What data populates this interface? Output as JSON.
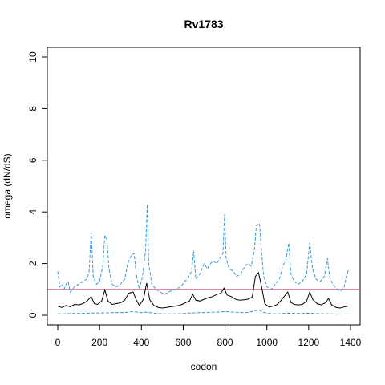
{
  "chart_data": {
    "type": "line",
    "title": "Rv1783",
    "xlabel": "codon",
    "ylabel": "omega (dN/dS)",
    "xlim": [
      0,
      1400
    ],
    "ylim": [
      0,
      10
    ],
    "x_ticks": [
      "0",
      "200",
      "400",
      "600",
      "800",
      "1000",
      "1200",
      "1400"
    ],
    "y_ticks": [
      "0",
      "2",
      "4",
      "6",
      "8",
      "10"
    ],
    "reference_line": {
      "y": 1,
      "color": "#e05a8a"
    },
    "grid": false,
    "series": [
      {
        "role": "omega",
        "style": "solid",
        "color": "#000000",
        "points": [
          [
            0,
            0.35
          ],
          [
            20,
            0.3
          ],
          [
            40,
            0.38
          ],
          [
            60,
            0.33
          ],
          [
            80,
            0.42
          ],
          [
            100,
            0.4
          ],
          [
            120,
            0.45
          ],
          [
            140,
            0.55
          ],
          [
            160,
            0.72
          ],
          [
            175,
            0.45
          ],
          [
            190,
            0.42
          ],
          [
            210,
            0.55
          ],
          [
            225,
            0.98
          ],
          [
            240,
            0.55
          ],
          [
            260,
            0.42
          ],
          [
            280,
            0.45
          ],
          [
            300,
            0.48
          ],
          [
            320,
            0.58
          ],
          [
            340,
            0.85
          ],
          [
            360,
            0.9
          ],
          [
            375,
            0.6
          ],
          [
            390,
            0.38
          ],
          [
            410,
            0.62
          ],
          [
            425,
            1.25
          ],
          [
            440,
            0.6
          ],
          [
            460,
            0.38
          ],
          [
            480,
            0.3
          ],
          [
            500,
            0.28
          ],
          [
            520,
            0.3
          ],
          [
            540,
            0.33
          ],
          [
            560,
            0.35
          ],
          [
            580,
            0.38
          ],
          [
            595,
            0.42
          ],
          [
            610,
            0.48
          ],
          [
            630,
            0.55
          ],
          [
            645,
            0.82
          ],
          [
            660,
            0.58
          ],
          [
            680,
            0.55
          ],
          [
            700,
            0.62
          ],
          [
            720,
            0.68
          ],
          [
            740,
            0.72
          ],
          [
            760,
            0.8
          ],
          [
            780,
            0.85
          ],
          [
            795,
            1.05
          ],
          [
            810,
            0.78
          ],
          [
            830,
            0.72
          ],
          [
            850,
            0.62
          ],
          [
            870,
            0.58
          ],
          [
            890,
            0.6
          ],
          [
            910,
            0.62
          ],
          [
            930,
            0.7
          ],
          [
            945,
            1.5
          ],
          [
            960,
            1.65
          ],
          [
            975,
            1.1
          ],
          [
            990,
            0.45
          ],
          [
            1010,
            0.32
          ],
          [
            1030,
            0.35
          ],
          [
            1050,
            0.42
          ],
          [
            1065,
            0.55
          ],
          [
            1085,
            0.75
          ],
          [
            1100,
            0.9
          ],
          [
            1115,
            0.5
          ],
          [
            1130,
            0.42
          ],
          [
            1150,
            0.4
          ],
          [
            1170,
            0.42
          ],
          [
            1190,
            0.55
          ],
          [
            1205,
            0.9
          ],
          [
            1220,
            0.6
          ],
          [
            1240,
            0.45
          ],
          [
            1260,
            0.4
          ],
          [
            1280,
            0.48
          ],
          [
            1295,
            0.65
          ],
          [
            1310,
            0.4
          ],
          [
            1330,
            0.3
          ],
          [
            1350,
            0.28
          ],
          [
            1370,
            0.32
          ],
          [
            1390,
            0.36
          ]
        ]
      },
      {
        "role": "upper",
        "style": "dashed",
        "color": "#3a9ad9",
        "points": [
          [
            0,
            1.7
          ],
          [
            10,
            1.1
          ],
          [
            20,
            1.2
          ],
          [
            30,
            1.0
          ],
          [
            40,
            1.2
          ],
          [
            50,
            1.3
          ],
          [
            60,
            0.9
          ],
          [
            80,
            1.1
          ],
          [
            100,
            1.2
          ],
          [
            120,
            1.3
          ],
          [
            140,
            1.4
          ],
          [
            150,
            1.7
          ],
          [
            160,
            3.2
          ],
          [
            170,
            1.5
          ],
          [
            185,
            1.2
          ],
          [
            200,
            1.3
          ],
          [
            215,
            1.9
          ],
          [
            225,
            3.1
          ],
          [
            235,
            2.9
          ],
          [
            245,
            1.8
          ],
          [
            260,
            1.2
          ],
          [
            280,
            1.1
          ],
          [
            300,
            1.2
          ],
          [
            320,
            1.4
          ],
          [
            335,
            2.0
          ],
          [
            350,
            2.3
          ],
          [
            365,
            2.4
          ],
          [
            375,
            1.6
          ],
          [
            390,
            1.0
          ],
          [
            405,
            1.5
          ],
          [
            420,
            2.5
          ],
          [
            428,
            4.3
          ],
          [
            435,
            2.0
          ],
          [
            450,
            1.2
          ],
          [
            470,
            1.0
          ],
          [
            490,
            0.9
          ],
          [
            510,
            0.8
          ],
          [
            530,
            0.9
          ],
          [
            560,
            1.0
          ],
          [
            590,
            1.1
          ],
          [
            605,
            1.3
          ],
          [
            620,
            1.4
          ],
          [
            640,
            1.7
          ],
          [
            650,
            2.5
          ],
          [
            660,
            1.4
          ],
          [
            680,
            1.6
          ],
          [
            700,
            2.0
          ],
          [
            715,
            1.8
          ],
          [
            730,
            2.0
          ],
          [
            745,
            2.1
          ],
          [
            760,
            2.0
          ],
          [
            775,
            2.2
          ],
          [
            790,
            2.4
          ],
          [
            798,
            3.9
          ],
          [
            805,
            2.2
          ],
          [
            820,
            1.8
          ],
          [
            840,
            1.7
          ],
          [
            855,
            1.5
          ],
          [
            875,
            1.6
          ],
          [
            895,
            1.9
          ],
          [
            910,
            2.0
          ],
          [
            925,
            1.9
          ],
          [
            940,
            2.5
          ],
          [
            950,
            3.5
          ],
          [
            965,
            3.55
          ],
          [
            975,
            2.4
          ],
          [
            985,
            1.5
          ],
          [
            1000,
            1.1
          ],
          [
            1020,
            1.0
          ],
          [
            1040,
            1.2
          ],
          [
            1060,
            1.4
          ],
          [
            1075,
            1.9
          ],
          [
            1090,
            2.1
          ],
          [
            1105,
            2.8
          ],
          [
            1115,
            1.6
          ],
          [
            1130,
            1.3
          ],
          [
            1150,
            1.2
          ],
          [
            1170,
            1.3
          ],
          [
            1190,
            1.6
          ],
          [
            1205,
            2.8
          ],
          [
            1218,
            1.8
          ],
          [
            1235,
            1.4
          ],
          [
            1255,
            1.3
          ],
          [
            1275,
            1.5
          ],
          [
            1290,
            2.2
          ],
          [
            1300,
            1.5
          ],
          [
            1315,
            1.2
          ],
          [
            1335,
            1.0
          ],
          [
            1355,
            0.95
          ],
          [
            1370,
            1.1
          ],
          [
            1380,
            1.5
          ],
          [
            1390,
            1.75
          ]
        ]
      },
      {
        "role": "lower",
        "style": "dashed",
        "color": "#3a9ad9",
        "points": [
          [
            0,
            0.05
          ],
          [
            40,
            0.06
          ],
          [
            80,
            0.07
          ],
          [
            140,
            0.08
          ],
          [
            200,
            0.09
          ],
          [
            260,
            0.1
          ],
          [
            320,
            0.11
          ],
          [
            360,
            0.14
          ],
          [
            400,
            0.1
          ],
          [
            425,
            0.12
          ],
          [
            460,
            0.08
          ],
          [
            520,
            0.05
          ],
          [
            580,
            0.06
          ],
          [
            640,
            0.09
          ],
          [
            700,
            0.11
          ],
          [
            760,
            0.12
          ],
          [
            800,
            0.14
          ],
          [
            840,
            0.12
          ],
          [
            900,
            0.1
          ],
          [
            940,
            0.16
          ],
          [
            960,
            0.22
          ],
          [
            980,
            0.12
          ],
          [
            1020,
            0.06
          ],
          [
            1060,
            0.06
          ],
          [
            1100,
            0.08
          ],
          [
            1140,
            0.07
          ],
          [
            1200,
            0.08
          ],
          [
            1260,
            0.06
          ],
          [
            1300,
            0.06
          ],
          [
            1340,
            0.04
          ],
          [
            1390,
            0.05
          ]
        ]
      }
    ]
  }
}
